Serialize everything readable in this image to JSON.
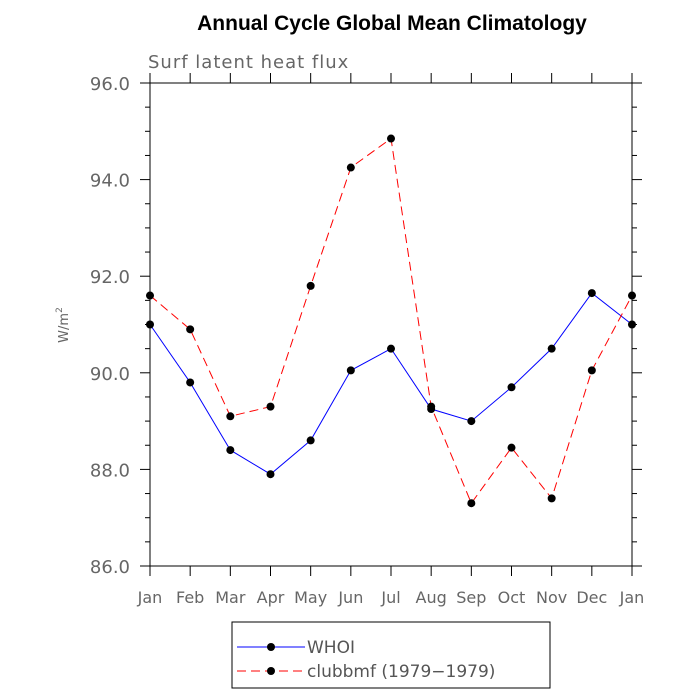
{
  "chart_data": {
    "type": "line",
    "title": "Annual Cycle Global Mean Climatology",
    "subtitle": "Surf latent heat flux",
    "ylabel": "W/m",
    "ylabel_sup": "2",
    "xlabel": "",
    "ylim": [
      86.0,
      96.0
    ],
    "yticks": [
      "86.0",
      "88.0",
      "90.0",
      "92.0",
      "94.0",
      "96.0"
    ],
    "categories": [
      "Jan",
      "Feb",
      "Mar",
      "Apr",
      "May",
      "Jun",
      "Jul",
      "Aug",
      "Sep",
      "Oct",
      "Nov",
      "Dec",
      "Jan"
    ],
    "grid": false,
    "legend_position": "bottom",
    "series": [
      {
        "name": "WHOI",
        "color": "#0000ff",
        "dash": "solid",
        "values": [
          91.0,
          89.8,
          88.4,
          87.9,
          88.6,
          90.05,
          90.5,
          89.25,
          89.0,
          89.7,
          90.5,
          91.65,
          91.0
        ]
      },
      {
        "name": "clubbmf (1979−1979)",
        "color": "#ff0000",
        "dash": "dashed",
        "values": [
          91.6,
          90.9,
          89.1,
          89.3,
          91.8,
          94.25,
          94.85,
          89.3,
          87.3,
          88.45,
          87.4,
          90.05,
          91.6
        ]
      }
    ]
  }
}
